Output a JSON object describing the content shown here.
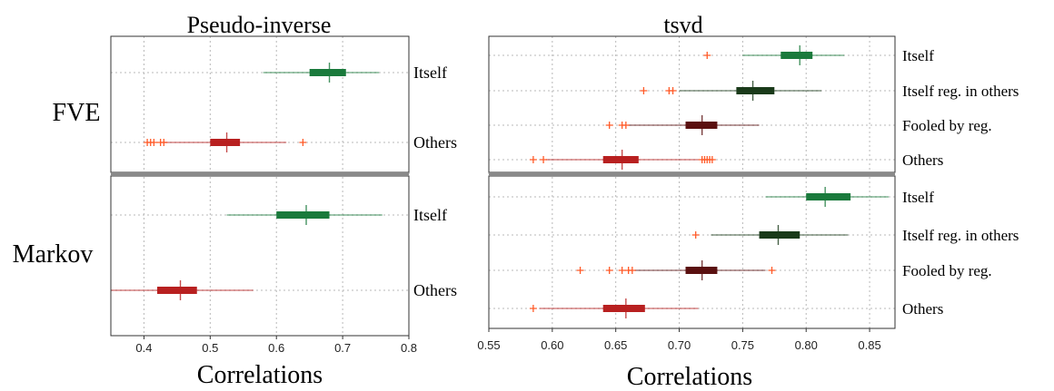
{
  "colors": {
    "itself": "#1a7a3c",
    "itself_reg": "#1a3a1a",
    "fooled": "#5a1010",
    "others": "#b82020",
    "outlier": "#ff5a28"
  },
  "chart_data": [
    {
      "type": "box",
      "title": "Pseudo-inverse",
      "xlabel": "Correlations",
      "xlim": [
        0.35,
        0.8
      ],
      "xticks": [
        "0.4",
        "0.5",
        "0.6",
        "0.7",
        "0.8"
      ],
      "grid": true,
      "row_labels": [
        "FVE",
        "Markov"
      ],
      "rows": [
        {
          "label": "FVE",
          "series": [
            {
              "name": "Itself",
              "whisker_low": 0.58,
              "q1": 0.65,
              "median": 0.68,
              "q3": 0.705,
              "whisker_high": 0.755,
              "outliers": []
            },
            {
              "name": "Others",
              "whisker_low": 0.43,
              "q1": 0.5,
              "median": 0.525,
              "q3": 0.545,
              "whisker_high": 0.615,
              "outliers": [
                0.405,
                0.41,
                0.415,
                0.425,
                0.43,
                0.64
              ]
            }
          ]
        },
        {
          "label": "Markov",
          "series": [
            {
              "name": "Itself",
              "whisker_low": 0.525,
              "q1": 0.6,
              "median": 0.645,
              "q3": 0.68,
              "whisker_high": 0.76,
              "outliers": []
            },
            {
              "name": "Others",
              "whisker_low": 0.35,
              "q1": 0.42,
              "median": 0.455,
              "q3": 0.48,
              "whisker_high": 0.565,
              "outliers": []
            }
          ]
        }
      ]
    },
    {
      "type": "box",
      "title": "tsvd",
      "xlabel": "Correlations",
      "xlim": [
        0.55,
        0.87
      ],
      "xticks": [
        "0.55",
        "0.60",
        "0.65",
        "0.70",
        "0.75",
        "0.80",
        "0.85"
      ],
      "grid": true,
      "rows": [
        {
          "label": "FVE",
          "series": [
            {
              "name": "Itself",
              "whisker_low": 0.75,
              "q1": 0.78,
              "median": 0.795,
              "q3": 0.805,
              "whisker_high": 0.83,
              "outliers": [
                0.722
              ]
            },
            {
              "name": "Itself reg. in others",
              "whisker_low": 0.7,
              "q1": 0.745,
              "median": 0.758,
              "q3": 0.775,
              "whisker_high": 0.812,
              "outliers": [
                0.672,
                0.692,
                0.695
              ]
            },
            {
              "name": "Fooled by reg.",
              "whisker_low": 0.66,
              "q1": 0.705,
              "median": 0.718,
              "q3": 0.73,
              "whisker_high": 0.763,
              "outliers": [
                0.645,
                0.655,
                0.658
              ]
            },
            {
              "name": "Others",
              "whisker_low": 0.595,
              "q1": 0.64,
              "median": 0.655,
              "q3": 0.668,
              "whisker_high": 0.715,
              "outliers": [
                0.585,
                0.593,
                0.718,
                0.72,
                0.722,
                0.724,
                0.726
              ]
            }
          ]
        },
        {
          "label": "Markov",
          "series": [
            {
              "name": "Itself",
              "whisker_low": 0.768,
              "q1": 0.8,
              "median": 0.815,
              "q3": 0.835,
              "whisker_high": 0.865,
              "outliers": []
            },
            {
              "name": "Itself reg. in others",
              "whisker_low": 0.725,
              "q1": 0.763,
              "median": 0.778,
              "q3": 0.795,
              "whisker_high": 0.833,
              "outliers": [
                0.713
              ]
            },
            {
              "name": "Fooled by reg.",
              "whisker_low": 0.665,
              "q1": 0.705,
              "median": 0.718,
              "q3": 0.73,
              "whisker_high": 0.768,
              "outliers": [
                0.622,
                0.645,
                0.655,
                0.66,
                0.663,
                0.773
              ]
            },
            {
              "name": "Others",
              "whisker_low": 0.59,
              "q1": 0.64,
              "median": 0.658,
              "q3": 0.673,
              "whisker_high": 0.715,
              "outliers": [
                0.585
              ]
            }
          ]
        }
      ]
    }
  ]
}
